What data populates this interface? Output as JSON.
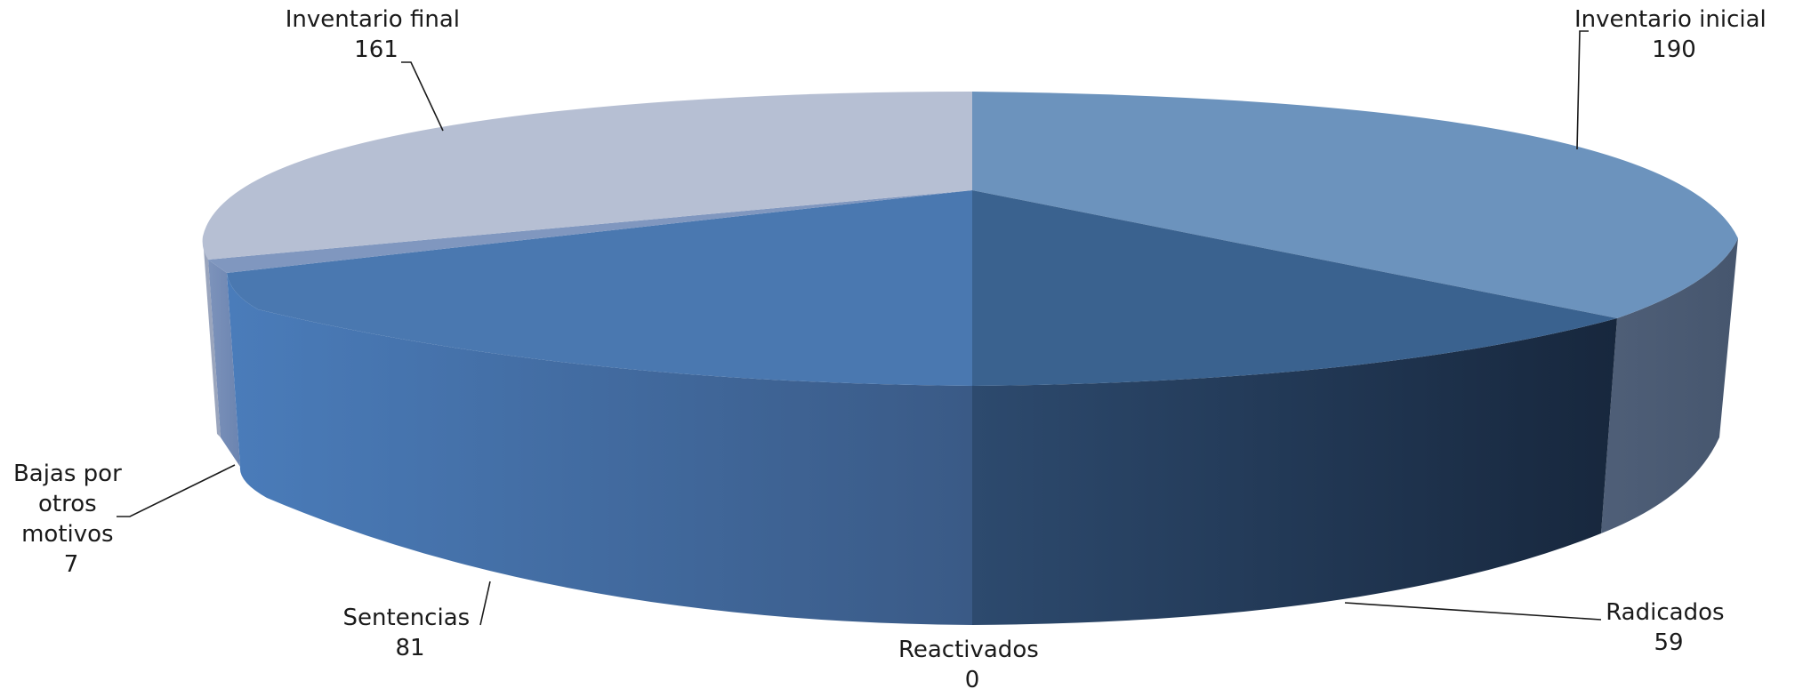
{
  "chart_data": {
    "type": "pie",
    "style": "3d",
    "title": "",
    "categories": [
      "Inventario inicial",
      "Radicados",
      "Reactivados",
      "Sentencias",
      "Bajas por otros motivos",
      "Inventario final"
    ],
    "values": [
      190,
      59,
      0,
      81,
      7,
      161
    ],
    "colors": {
      "Inventario inicial": "#6c93bd",
      "Radicados": "#3a628f",
      "Reactivados": "#2e4f78",
      "Sentencias": "#4a78b0",
      "Bajas por otros motivos": "#8097bf",
      "Inventario final": "#b6bfd3"
    },
    "data_labels": [
      {
        "name": "Inventario inicial",
        "value": "190",
        "lines": [
          "Inventario inicial"
        ]
      },
      {
        "name": "Radicados",
        "value": "59",
        "lines": [
          "Radicados"
        ]
      },
      {
        "name": "Reactivados",
        "value": "0",
        "lines": [
          "Reactivados"
        ]
      },
      {
        "name": "Sentencias",
        "value": "81",
        "lines": [
          "Sentencias"
        ]
      },
      {
        "name": "Bajas por otros motivos",
        "value": "7",
        "lines": [
          "Bajas por",
          "otros",
          "motivos"
        ]
      },
      {
        "name": "Inventario final",
        "value": "161",
        "lines": [
          "Inventario final"
        ]
      }
    ],
    "legend": "none"
  }
}
